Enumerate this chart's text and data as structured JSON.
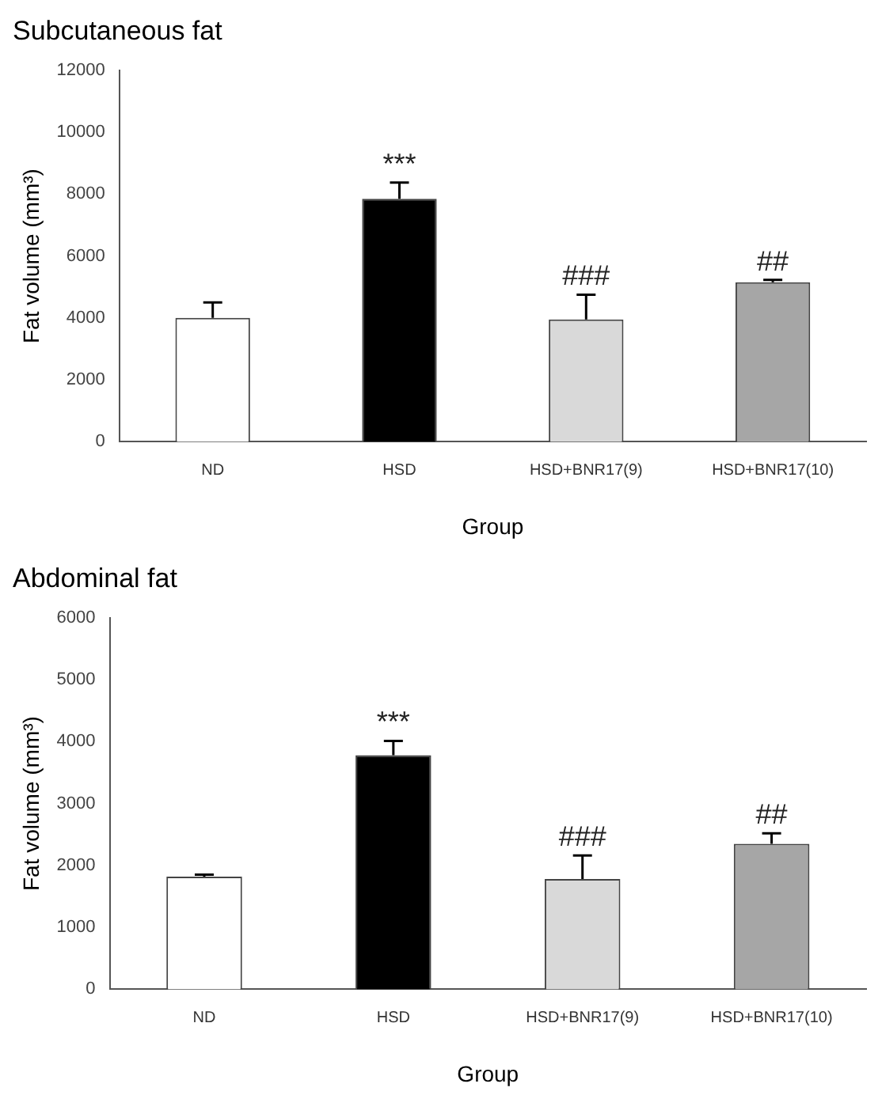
{
  "chart_data": [
    {
      "type": "bar",
      "title": "Subcutaneous fat",
      "xlabel": "Group",
      "ylabel": "Fat volume (mm³)",
      "categories": [
        "ND",
        "HSD",
        "HSD+BNR17(9)",
        "HSD+BNR17(10)"
      ],
      "values": [
        4000,
        7850,
        3950,
        5150
      ],
      "colors": [
        "#ffffff",
        "#000000",
        "#d9d9d9",
        "#a6a6a6"
      ],
      "errors": [
        [
          4000,
          4500
        ],
        [
          7850,
          8370
        ],
        [
          3950,
          4750
        ],
        [
          5150,
          5230
        ]
      ],
      "ylim": [
        0,
        12000
      ],
      "yticks": [
        0,
        2000,
        4000,
        6000,
        8000,
        10000,
        12000
      ],
      "grid": false,
      "legend": false,
      "annotations": [
        {
          "text": "***",
          "x": "HSD",
          "y": 8370
        },
        {
          "text": "###",
          "x": "HSD+BNR17(9)",
          "y": 4750
        },
        {
          "text": "##",
          "x": "HSD+BNR17(10)",
          "y": 5230
        }
      ]
    },
    {
      "type": "bar",
      "title": "Abdominal fat",
      "xlabel": "Group",
      "ylabel": "Fat volume (mm³)",
      "categories": [
        "ND",
        "HSD",
        "HSD+BNR17(9)",
        "HSD+BNR17(10)"
      ],
      "values": [
        1820,
        3780,
        1780,
        2350
      ],
      "colors": [
        "#ffffff",
        "#000000",
        "#d9d9d9",
        "#a6a6a6"
      ],
      "errors": [
        [
          1820,
          1850
        ],
        [
          3780,
          4010
        ],
        [
          1780,
          2160
        ],
        [
          2350,
          2520
        ]
      ],
      "ylim": [
        0,
        6000
      ],
      "yticks": [
        0,
        1000,
        2000,
        3000,
        4000,
        5000,
        6000
      ],
      "grid": false,
      "legend": false,
      "annotations": [
        {
          "text": "***",
          "x": "HSD",
          "y": 4010
        },
        {
          "text": "###",
          "x": "HSD+BNR17(9)",
          "y": 2160
        },
        {
          "text": "##",
          "x": "HSD+BNR17(10)",
          "y": 2520
        }
      ]
    }
  ]
}
